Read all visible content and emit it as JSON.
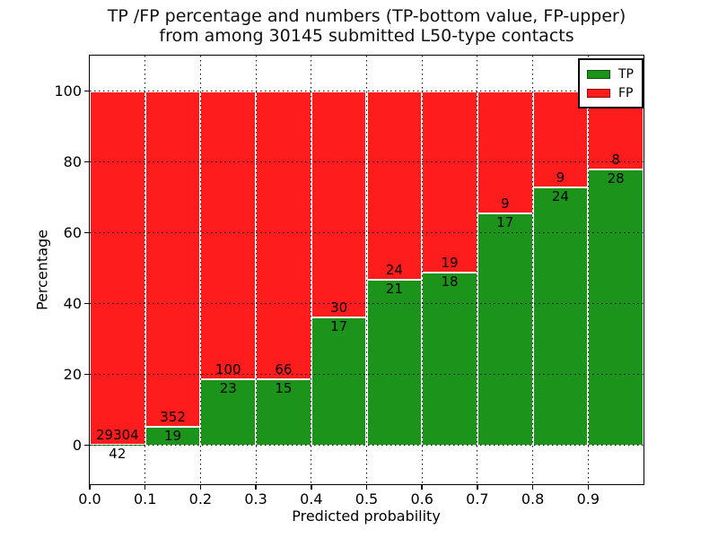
{
  "title": {
    "line1": "TP /FP percentage and numbers (TP-bottom value, FP-upper)",
    "line2": "from among 30145 submitted L50-type contacts"
  },
  "chart_data": {
    "type": "bar",
    "stacked": true,
    "normalized_to_percent": true,
    "title": "TP /FP percentage and numbers (TP-bottom value, FP-upper)\nfrom among 30145 submitted L50-type contacts",
    "xlabel": "Predicted probability",
    "ylabel": "Percentage",
    "xlim": [
      0,
      1
    ],
    "ylim": [
      -11,
      110
    ],
    "grid": "dotted",
    "legend_position": "upper-right",
    "bin_width": 0.1,
    "bin_starts": [
      0.0,
      0.1,
      0.2,
      0.3,
      0.4,
      0.5,
      0.6,
      0.7,
      0.8,
      0.9
    ],
    "series": [
      {
        "name": "TP",
        "color": "#1c941c",
        "counts": [
          42,
          19,
          23,
          15,
          17,
          21,
          18,
          17,
          24,
          28
        ]
      },
      {
        "name": "FP",
        "color": "#ff1c1c",
        "counts": [
          29304,
          352,
          100,
          66,
          30,
          24,
          19,
          9,
          9,
          8
        ]
      }
    ],
    "tp_percent": [
      0.14,
      5.12,
      18.7,
      18.52,
      36.17,
      46.67,
      48.65,
      65.38,
      72.73,
      77.78
    ],
    "xticks": [
      {
        "v": 0.0,
        "label": "0.0"
      },
      {
        "v": 0.1,
        "label": "0.1"
      },
      {
        "v": 0.2,
        "label": "0.2"
      },
      {
        "v": 0.3,
        "label": "0.3"
      },
      {
        "v": 0.4,
        "label": "0.4"
      },
      {
        "v": 0.5,
        "label": "0.5"
      },
      {
        "v": 0.6,
        "label": "0.6"
      },
      {
        "v": 0.7,
        "label": "0.7"
      },
      {
        "v": 0.8,
        "label": "0.8"
      },
      {
        "v": 0.9,
        "label": "0.9"
      }
    ],
    "yticks": [
      {
        "v": 0,
        "label": "0"
      },
      {
        "v": 20,
        "label": "20"
      },
      {
        "v": 40,
        "label": "40"
      },
      {
        "v": 60,
        "label": "60"
      },
      {
        "v": 80,
        "label": "80"
      },
      {
        "v": 100,
        "label": "100"
      }
    ],
    "legend": {
      "entries": [
        {
          "label": "TP",
          "color": "#1c941c"
        },
        {
          "label": "FP",
          "color": "#ff1c1c"
        }
      ]
    }
  }
}
